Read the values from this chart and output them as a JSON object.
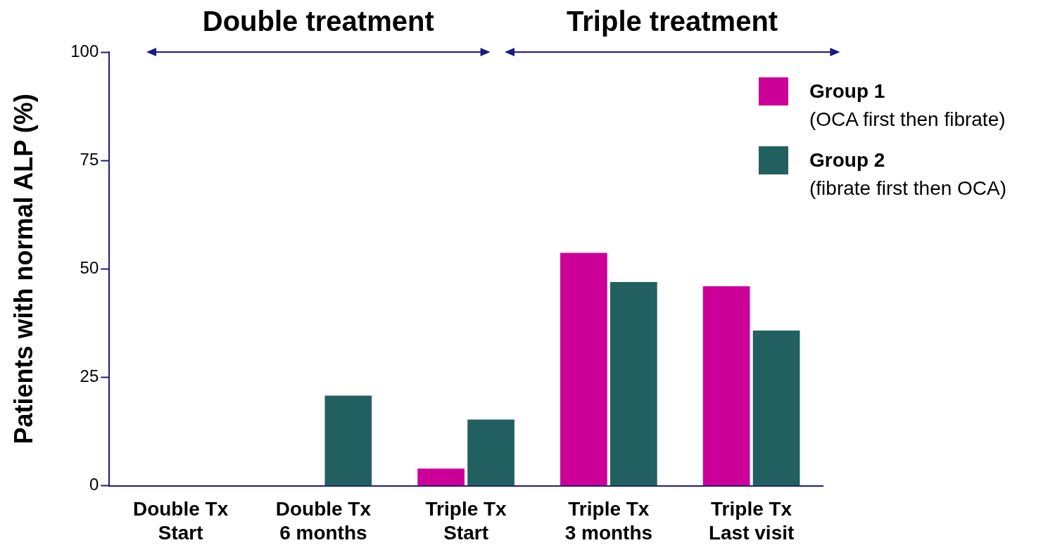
{
  "chart_data": {
    "type": "bar",
    "ylabel": "Patients with normal ALP (%)",
    "categories": [
      "Double Tx\nStart",
      "Double Tx\n6 months",
      "Triple Tx\nStart",
      "Triple Tx\n3 months",
      "Triple Tx\nLast visit"
    ],
    "series": [
      {
        "name": "Group 1\n(OCA first then fibrate)",
        "color": "#cc0099",
        "values": [
          0,
          0,
          4,
          53.7,
          46
        ]
      },
      {
        "name": "Group 2\n(fibrate first then OCA)",
        "color": "#226060",
        "values": [
          0,
          20.8,
          15.3,
          47,
          35.8
        ]
      }
    ],
    "ylim": [
      0,
      100
    ],
    "yticks": [
      0,
      25,
      50,
      75,
      100
    ],
    "legend": "right",
    "annotations": [
      "Double treatment",
      "Triple treatment"
    ]
  }
}
